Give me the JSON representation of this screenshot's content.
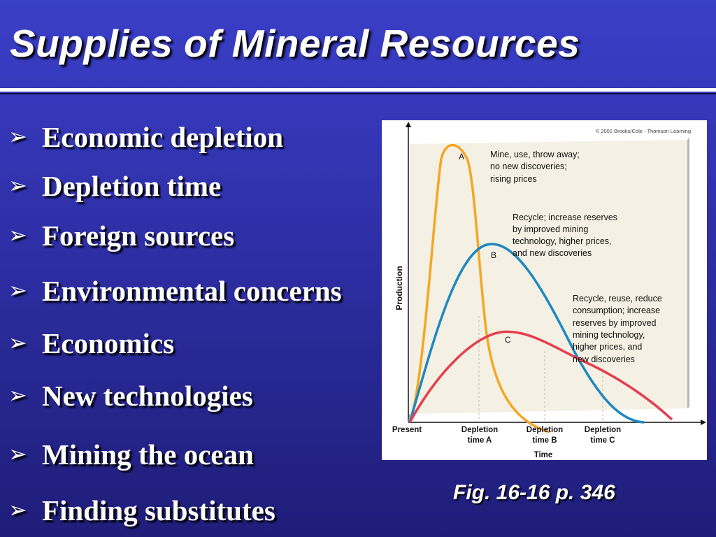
{
  "slide": {
    "title": "Supplies of Mineral Resources",
    "bullet_glyph": "➢",
    "bullets": [
      "Economic depletion",
      "Depletion time",
      "Foreign sources",
      "Environmental concerns",
      "Economics",
      "New technologies",
      "Mining the ocean",
      "Finding substitutes"
    ],
    "caption": "Fig. 16-16 p. 346"
  },
  "chart_data": {
    "type": "line",
    "copyright": "© 2002 Brooks/Cole - Thomson Learning",
    "xlabel": "Time",
    "ylabel": "Production",
    "x_tick_labels": [
      {
        "line1": "Present",
        "line2": ""
      },
      {
        "line1": "Depletion",
        "line2": "time A"
      },
      {
        "line1": "Depletion",
        "line2": "time B"
      },
      {
        "line1": "Depletion",
        "line2": "time C"
      }
    ],
    "series": [
      {
        "name": "A",
        "color": "#f5a623",
        "annotation": [
          "Mine, use, throw away;",
          "no new discoveries;",
          "rising prices"
        ]
      },
      {
        "name": "B",
        "color": "#1e88c0",
        "annotation": [
          "Recycle; increase reserves",
          "by improved mining",
          "technology, higher prices,",
          "and new discoveries"
        ]
      },
      {
        "name": "C",
        "color": "#e63e4e",
        "annotation": [
          "Recycle, reuse, reduce",
          "consumption; increase",
          "reserves by improved",
          "mining technology,",
          "higher prices, and",
          "new discoveries"
        ]
      }
    ],
    "grid": false,
    "legend": "none"
  }
}
